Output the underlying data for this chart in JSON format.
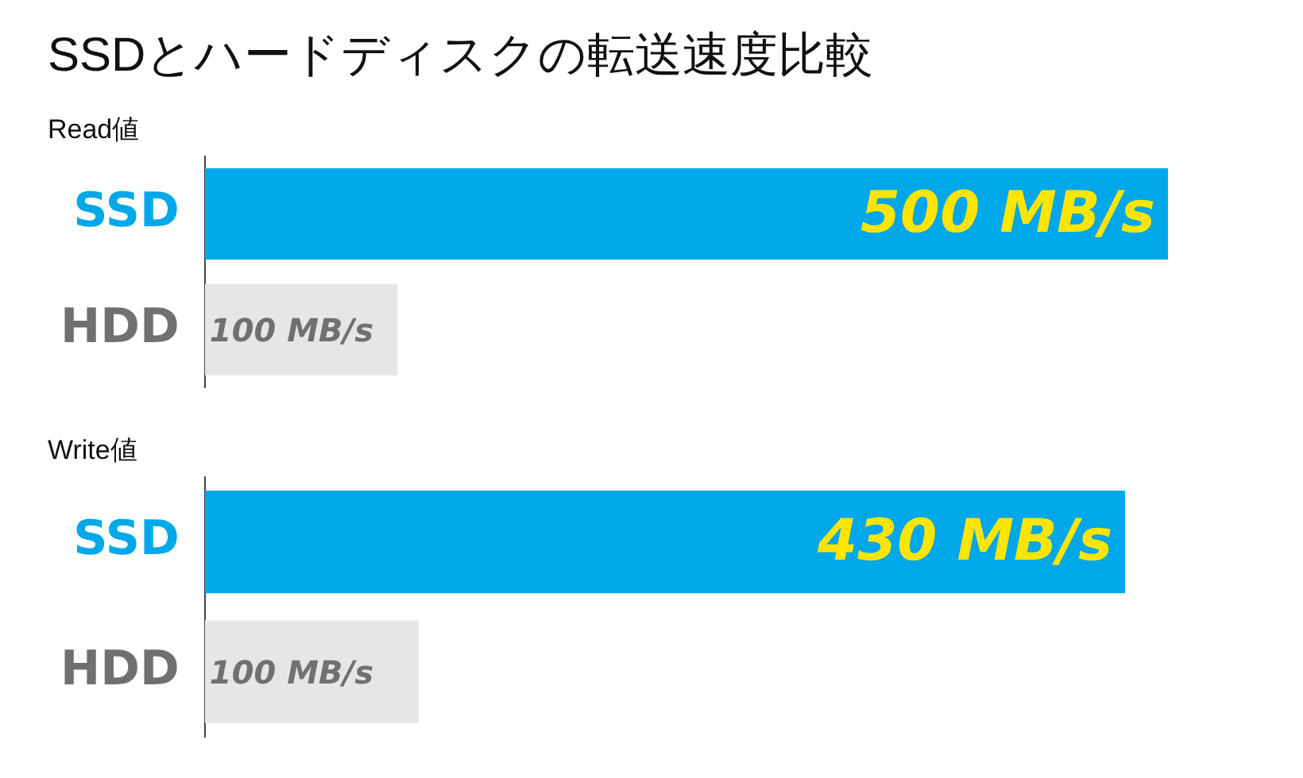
{
  "chart_data": [
    {
      "type": "bar",
      "orientation": "horizontal",
      "title": "SSDとハードディスクの転送速度比較",
      "subtitle": "Read値",
      "categories": [
        "SSD",
        "HDD"
      ],
      "values": [
        500,
        100
      ],
      "colors": [
        "#00a7e9",
        "#e6e6e6"
      ],
      "value_labels": [
        "500 MB/s",
        "100 MB/s"
      ],
      "tick_labels": "y"
    },
    {
      "type": "bar",
      "orientation": "horizontal",
      "subtitle": "Write値",
      "categories": [
        "SSD",
        "HDD"
      ],
      "values": [
        430,
        100
      ],
      "colors": [
        "#00a7e9",
        "#e6e6e6"
      ],
      "value_labels": [
        "430 MB/s",
        "100 MB/s"
      ],
      "tick_labels": "y"
    }
  ]
}
